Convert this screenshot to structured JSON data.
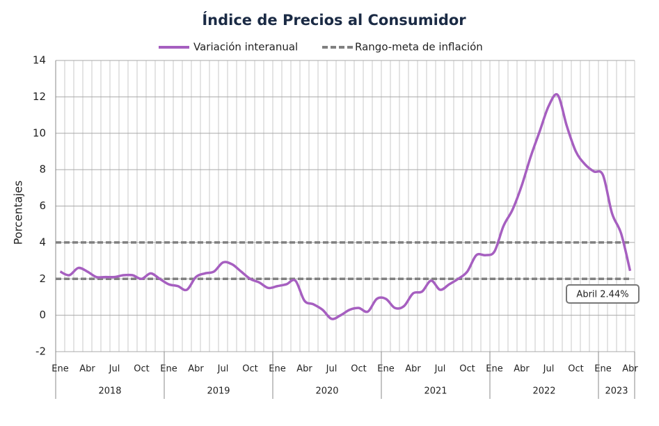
{
  "chart_data": {
    "type": "line",
    "title": "Índice de Precios al Consumidor",
    "y_label": "Porcentajes",
    "categories": [
      "Ene",
      null,
      null,
      "Abr",
      null,
      null,
      "Jul",
      null,
      null,
      "Oct",
      null,
      null,
      "Ene",
      null,
      null,
      "Abr",
      null,
      null,
      "Jul",
      null,
      null,
      "Oct",
      null,
      null,
      "Ene",
      null,
      null,
      "Abr",
      null,
      null,
      "Jul",
      null,
      null,
      "Oct",
      null,
      null,
      "Ene",
      null,
      null,
      "Abr",
      null,
      null,
      "Jul",
      null,
      null,
      "Oct",
      null,
      null,
      "Ene",
      null,
      null,
      "Abr",
      null,
      null,
      "Jul",
      null,
      null,
      "Oct",
      null,
      null,
      "Ene",
      null,
      null,
      "Abr"
    ],
    "years": [
      "2018",
      "2019",
      "2020",
      "2021",
      "2022",
      "2023"
    ],
    "series": [
      {
        "name": "Variación interanual",
        "color": "#a65fc0",
        "values": [
          2.4,
          2.2,
          2.6,
          2.4,
          2.1,
          2.1,
          2.1,
          2.2,
          2.2,
          2.0,
          2.3,
          2.0,
          1.7,
          1.6,
          1.4,
          2.1,
          2.3,
          2.4,
          2.9,
          2.8,
          2.4,
          2.0,
          1.8,
          1.5,
          1.6,
          1.7,
          1.9,
          0.8,
          0.6,
          0.3,
          -0.2,
          0.0,
          0.3,
          0.4,
          0.2,
          0.9,
          0.9,
          0.4,
          0.5,
          1.2,
          1.3,
          1.9,
          1.4,
          1.7,
          2.0,
          2.4,
          3.3,
          3.3,
          3.5,
          4.9,
          5.8,
          7.1,
          8.7,
          10.1,
          11.5,
          12.1,
          10.4,
          9.0,
          8.3,
          7.9,
          7.7,
          5.6,
          4.5,
          2.44
        ]
      }
    ],
    "reference": {
      "name": "Rango-meta de inflación",
      "color": "#808080",
      "values": [
        2,
        4
      ]
    },
    "annotation": "Abril 2.44%",
    "ylim": [
      -2,
      14
    ],
    "yticks": [
      -2,
      0,
      2,
      4,
      6,
      8,
      10,
      12,
      14
    ],
    "grid": true
  }
}
